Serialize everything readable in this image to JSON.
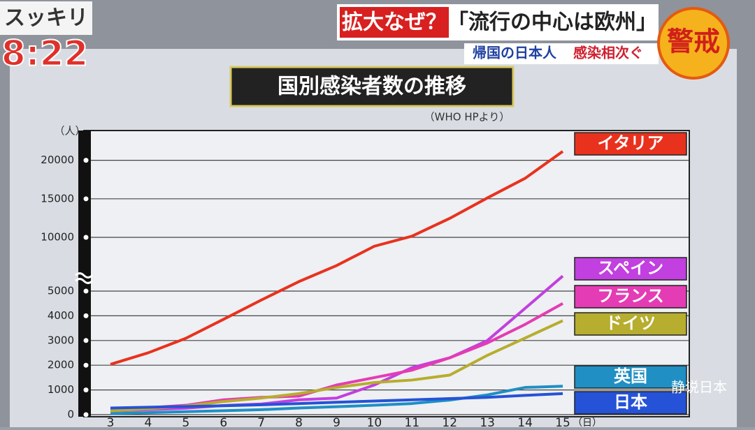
{
  "overlay": {
    "program": "スッキリ",
    "clock": "8:22",
    "headline_tag": "拡大なぜ？",
    "headline": "「流行の中心は欧州」",
    "sub_a": "帰国の日本人",
    "sub_b": "感染相次ぐ",
    "badge": "警戒",
    "watermark": "静说日本"
  },
  "chart_data": {
    "type": "line",
    "title": "国別感染者数の推移",
    "subtitle": "（WHO HPより）",
    "y_label": "（人）",
    "x_label": "（日）",
    "x": [
      3,
      4,
      5,
      6,
      7,
      8,
      9,
      10,
      11,
      12,
      13,
      14,
      15
    ],
    "xlim": [
      3,
      15
    ],
    "xticks": [
      3,
      4,
      5,
      6,
      7,
      8,
      9,
      10,
      11,
      12,
      13,
      14,
      15
    ],
    "ylim": [
      0,
      23500
    ],
    "y_break": [
      5000,
      10000
    ],
    "yticks": [
      0,
      1000,
      2000,
      3000,
      4000,
      5000,
      10000,
      15000,
      20000
    ],
    "grid": true,
    "series": [
      {
        "name": "イタリア",
        "color": "#e8321e",
        "values": [
          2036,
          2502,
          3089,
          3858,
          4636,
          5883,
          7375,
          9172,
          10149,
          12462,
          15113,
          17660,
          21157
        ]
      },
      {
        "name": "スペイン",
        "color": "#c23fe0",
        "values": [
          150,
          200,
          260,
          370,
          430,
          600,
          670,
          1200,
          1900,
          2300,
          3000,
          4300,
          6400
        ]
      },
      {
        "name": "フランス",
        "color": "#e43cb4",
        "values": [
          190,
          280,
          380,
          600,
          700,
          750,
          1200,
          1500,
          1800,
          2300,
          2900,
          3650,
          4500
        ]
      },
      {
        "name": "ドイツ",
        "color": "#b7ad2e",
        "values": [
          150,
          240,
          350,
          530,
          670,
          850,
          1100,
          1300,
          1400,
          1600,
          2400,
          3100,
          3800
        ]
      },
      {
        "name": "英国",
        "color": "#1f8fc4",
        "values": [
          40,
          80,
          120,
          160,
          200,
          270,
          320,
          380,
          450,
          590,
          800,
          1100,
          1150
        ]
      },
      {
        "name": "日本",
        "color": "#2552d6",
        "values": [
          270,
          300,
          330,
          360,
          400,
          450,
          500,
          550,
          600,
          650,
          700,
          780,
          850
        ]
      }
    ]
  }
}
